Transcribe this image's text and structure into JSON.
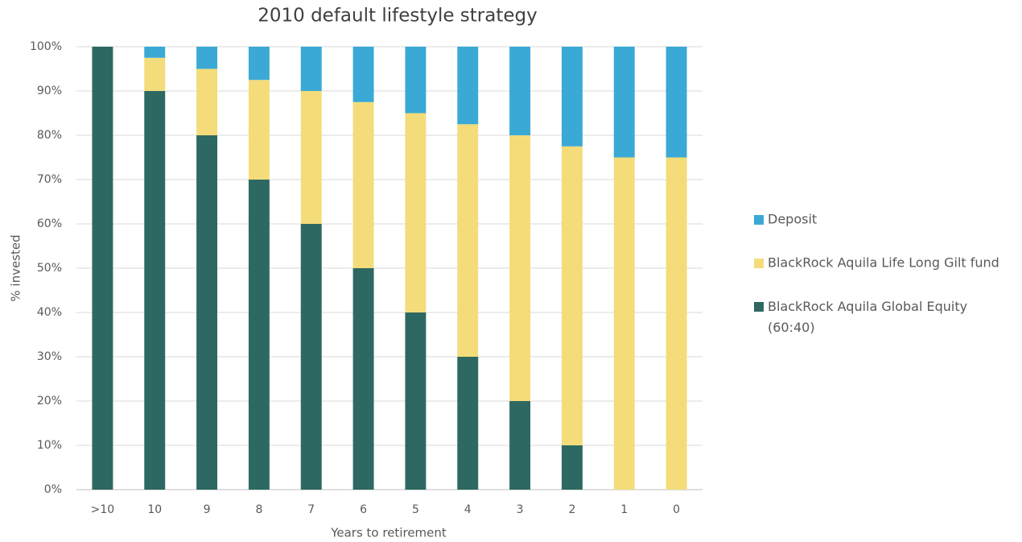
{
  "chart_data": {
    "type": "stacked_bar",
    "title": "2010 default lifestyle strategy",
    "x_label": "Years to retirement",
    "y_label": "% invested",
    "categories": [
      ">10",
      "10",
      "9",
      "8",
      "7",
      "6",
      "5",
      "4",
      "3",
      "2",
      "1",
      "0"
    ],
    "series": [
      {
        "name": "BlackRock Aquila Global Equity (60:40)",
        "color": "#2d6962",
        "values": [
          100,
          90,
          80,
          70,
          60,
          50,
          40,
          30,
          20,
          10,
          0,
          0
        ]
      },
      {
        "name": "BlackRock Aquila Life Long Gilt fund",
        "color": "#f4dc7a",
        "values": [
          0,
          7.5,
          15,
          22.5,
          30,
          37.5,
          45,
          52.5,
          60,
          67.5,
          75,
          75
        ]
      },
      {
        "name": "Deposit",
        "color": "#3aa9d6",
        "values": [
          0,
          2.5,
          5,
          7.5,
          10,
          12.5,
          15,
          17.5,
          20,
          22.5,
          25,
          25
        ]
      }
    ],
    "ylim": [
      0,
      100
    ],
    "yticks": [
      {
        "value": 0,
        "label": "0%"
      },
      {
        "value": 10,
        "label": "10%"
      },
      {
        "value": 20,
        "label": "20%"
      },
      {
        "value": 30,
        "label": "30%"
      },
      {
        "value": 40,
        "label": "40%"
      },
      {
        "value": 50,
        "label": "50%"
      },
      {
        "value": 60,
        "label": "60%"
      },
      {
        "value": 70,
        "label": "70%"
      },
      {
        "value": 80,
        "label": "80%"
      },
      {
        "value": 90,
        "label": "90%"
      },
      {
        "value": 100,
        "label": "100%"
      }
    ],
    "grid": true,
    "legend": "right"
  }
}
